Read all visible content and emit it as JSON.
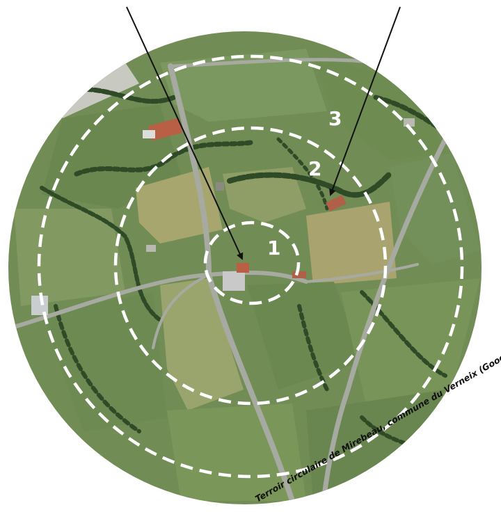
{
  "caption": "Terroir circulaire de Mirebeau, commune du Verneix (Google, Landsat)",
  "rings": [
    {
      "label": "1"
    },
    {
      "label": "2"
    },
    {
      "label": "3"
    }
  ],
  "colors": {
    "field_base": "#6f8a52",
    "field_dark": "#5a7640",
    "field_light": "#94a46a",
    "field_yellow": "#a9a872",
    "hedge": "#2f4a26",
    "road": "#9a9f98",
    "ring_stroke": "#ffffff",
    "arrow": "#111111"
  }
}
